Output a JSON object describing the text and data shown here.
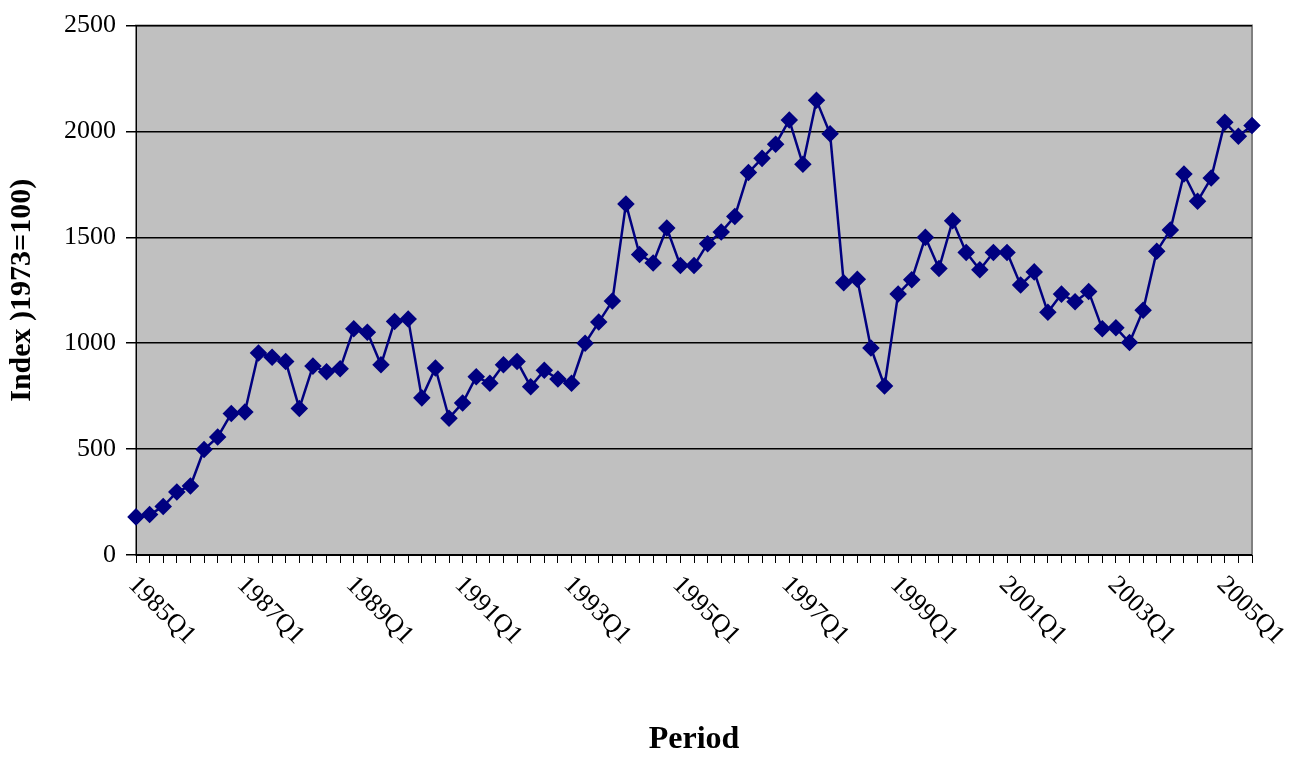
{
  "chart_data": {
    "type": "line",
    "xlabel": "Period",
    "ylabel": "Index )1973=100)",
    "categories": [
      "1985Q1",
      null,
      null,
      null,
      null,
      null,
      null,
      null,
      "1987Q1",
      null,
      null,
      null,
      null,
      null,
      null,
      null,
      "1989Q1",
      null,
      null,
      null,
      null,
      null,
      null,
      null,
      "1991Q1",
      null,
      null,
      null,
      null,
      null,
      null,
      null,
      "1993Q1",
      null,
      null,
      null,
      null,
      null,
      null,
      null,
      "1995Q1",
      null,
      null,
      null,
      null,
      null,
      null,
      null,
      "1997Q1",
      null,
      null,
      null,
      null,
      null,
      null,
      null,
      "1999Q1",
      null,
      null,
      null,
      null,
      null,
      null,
      null,
      "2001Q1",
      null,
      null,
      null,
      null,
      null,
      null,
      null,
      "2003Q1",
      null,
      null,
      null,
      null,
      null,
      null,
      null,
      "2005Q1",
      null,
      null
    ],
    "series": [
      {
        "color": "#000080",
        "values": [
          180,
          191,
          229,
          298,
          326,
          498,
          557,
          668,
          675,
          954,
          934,
          914,
          692,
          892,
          865,
          880,
          1068,
          1052,
          898,
          1103,
          1114,
          742,
          883,
          646,
          718,
          842,
          811,
          898,
          914,
          795,
          872,
          831,
          811,
          1000,
          1100,
          1199,
          1658,
          1419,
          1379,
          1544,
          1367,
          1367,
          1470,
          1525,
          1599,
          1806,
          1873,
          1940,
          2054,
          1845,
          2147,
          1989,
          1286,
          1302,
          978,
          798,
          1233,
          1300,
          1500,
          1353,
          1578,
          1429,
          1347,
          1429,
          1429,
          1275,
          1337,
          1146,
          1232,
          1196,
          1244,
          1068,
          1073,
          1003,
          1156,
          1434,
          1535,
          1799,
          1671,
          1780,
          2043,
          1977,
          2028
        ]
      }
    ],
    "ylim": [
      0,
      2500
    ],
    "yticks": [
      0,
      500,
      1000,
      1500,
      2000,
      2500
    ],
    "grid": "y",
    "legend": false,
    "marker": "diamond",
    "line_style": "solid"
  }
}
